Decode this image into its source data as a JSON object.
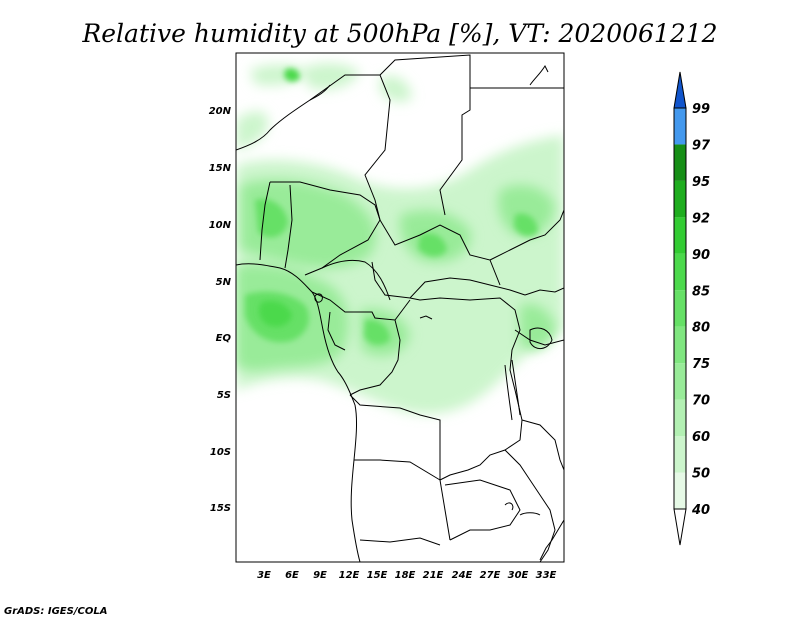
{
  "title": "Relative humidity at 500hPa [%], VT: 2020061212",
  "credit": "GrADS: IGES/COLA",
  "map": {
    "lat_ticks": [
      "20N",
      "15N",
      "10N",
      "5N",
      "EQ",
      "5S",
      "10S",
      "15S"
    ],
    "lon_ticks": [
      "3E",
      "6E",
      "9E",
      "12E",
      "15E",
      "18E",
      "21E",
      "24E",
      "27E",
      "30E",
      "33E"
    ]
  },
  "colorbar": {
    "labels": [
      "40",
      "50",
      "60",
      "70",
      "75",
      "80",
      "85",
      "90",
      "92",
      "95",
      "97",
      "99"
    ],
    "colors": [
      "#ffffff",
      "#e6f9e6",
      "#ccf5cc",
      "#b3f0b3",
      "#99eb99",
      "#80e680",
      "#66e066",
      "#4cd94c",
      "#33cc33",
      "#1fad1f",
      "#168f16",
      "#4499ee",
      "#2277dd",
      "#1155cc"
    ]
  }
}
